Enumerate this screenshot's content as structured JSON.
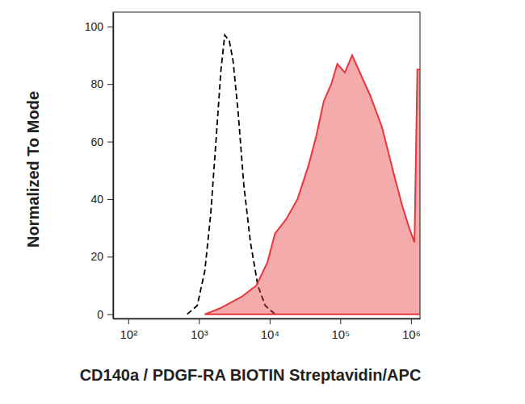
{
  "chart_data": {
    "type": "line",
    "xlabel": "CD140a / PDGF-RA BIOTIN Streptavidin/APC",
    "ylabel": "Normalized To Mode",
    "log": "x",
    "xlim": [
      61,
      1340000
    ],
    "ylim": [
      -1.5,
      105
    ],
    "xticks": [
      {
        "value": 100,
        "label": "10²"
      },
      {
        "value": 1000,
        "label": "10³"
      },
      {
        "value": 10000,
        "label": "10⁴"
      },
      {
        "value": 100000,
        "label": "10⁵"
      },
      {
        "value": 1000000,
        "label": "10⁶"
      }
    ],
    "yticks": [
      0,
      20,
      40,
      60,
      80,
      100
    ],
    "series": [
      {
        "type": "line",
        "color": "#000000",
        "line_style": "dashed",
        "x": [
          681,
          946,
          1210,
          1470,
          1740,
          2050,
          2320,
          2690,
          3040,
          3590,
          4310,
          5350,
          6810,
          8660,
          11900
        ],
        "values": [
          0,
          3,
          15,
          35,
          60,
          85,
          97,
          95,
          88,
          70,
          45,
          25,
          10,
          3,
          0
        ]
      },
      {
        "type": "area",
        "color": "#e8363a",
        "line_style": "solid",
        "x": [
          1210,
          1540,
          1960,
          2800,
          3980,
          6500,
          9300,
          11900,
          17100,
          24800,
          35800,
          45700,
          58300,
          74500,
          90600,
          116000,
          147000,
          197000,
          265000,
          389000,
          554000,
          745000,
          942000,
          1120000,
          1230000,
          1340000
        ],
        "values": [
          0,
          1,
          2,
          4,
          6,
          10,
          18,
          28,
          33,
          40,
          52,
          62,
          74,
          80,
          87,
          84,
          90,
          83,
          76,
          65,
          50,
          38,
          30,
          25,
          85,
          85
        ]
      }
    ]
  }
}
